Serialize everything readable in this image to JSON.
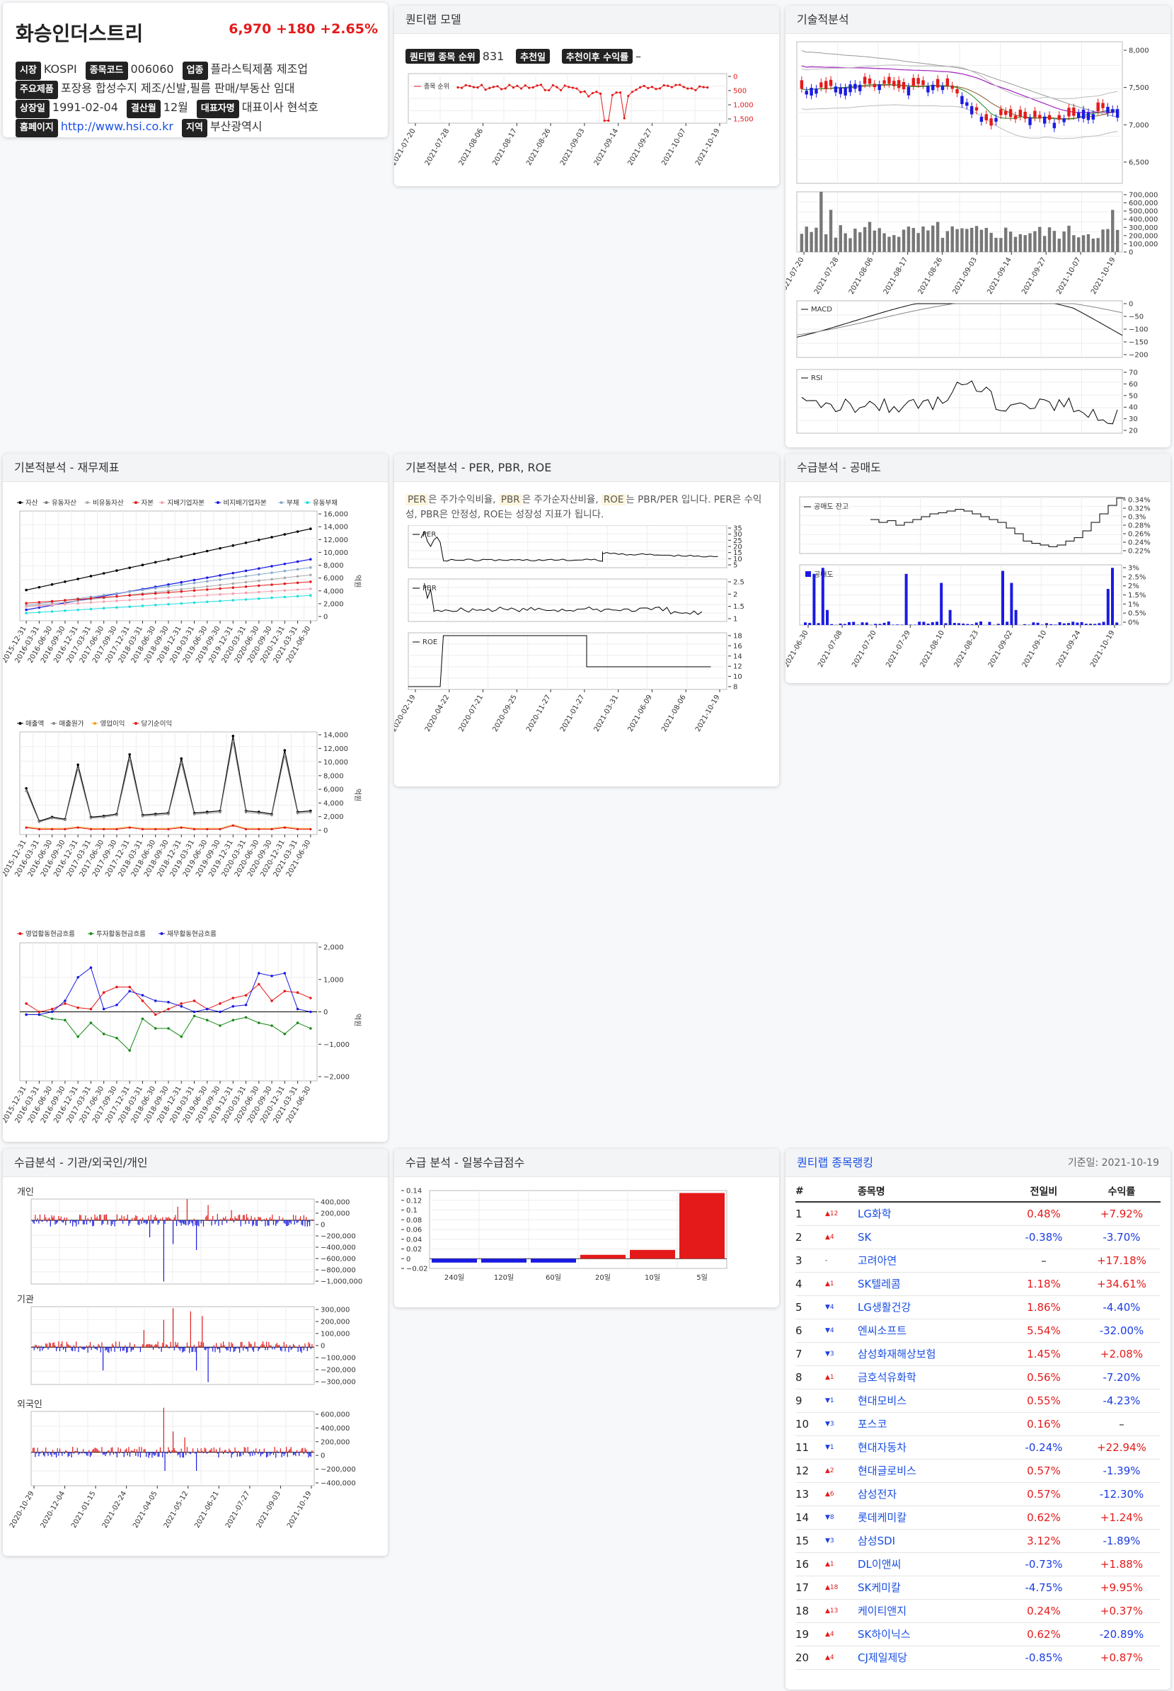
{
  "summary": {
    "name": "화승인더스트리",
    "price": "6,970",
    "change": "+180",
    "change_pct": "+2.65%",
    "fields": {
      "market_label": "시장",
      "market": "KOSPI",
      "code_label": "종목코드",
      "code": "006060",
      "sector_label": "업종",
      "sector": "플라스틱제품 제조업",
      "product_label": "주요제품",
      "product": "포장용 합성수지 제조/신발,필름 판매/부동산 임대",
      "listed_label": "상장일",
      "listed": "1991-02-04",
      "settle_label": "결산월",
      "settle": "12월",
      "ceo_label": "대표자명",
      "ceo": "대표이사 현석호",
      "home_label": "홈페이지",
      "home": "http://www.hsi.co.kr",
      "region_label": "지역",
      "region": "부산광역시"
    }
  },
  "panels": {
    "quantilab_model": "퀀티랩 모델",
    "technical": "기술적분석",
    "fundamental_fin": "기본적분석 - 재무제표",
    "fundamental_ratio": "기본적분석 - PER, PBR, ROE",
    "short_sell": "수급분석 - 공매도",
    "investors": "수급분석 - 기관/외국인/개인",
    "daily_score": "수급 분석 - 일봉수급점수",
    "ranking": "퀀티랩 종목랭킹"
  },
  "model": {
    "rank_label": "퀀티랩 종목 순위",
    "rank_value": "831",
    "rec_date_label": "추천일",
    "rec_return_label": "추천이후 수익률",
    "rec_return_value": "–",
    "legend": "종목 순위",
    "y_ticks": [
      "0",
      "500",
      "1,000",
      "1,500"
    ],
    "x_ticks": [
      "2021-07-20",
      "2021-07-28",
      "2021-08-06",
      "2021-08-17",
      "2021-08-26",
      "2021-09-03",
      "2021-09-14",
      "2021-09-27",
      "2021-10-07",
      "2021-10-19"
    ]
  },
  "tech": {
    "price_ticks": [
      "8,000",
      "7,500",
      "7,000",
      "6,500"
    ],
    "vol_ticks": [
      "700,000",
      "600,000",
      "500,000",
      "400,000",
      "300,000",
      "200,000",
      "100,000",
      "0"
    ],
    "x_ticks": [
      "2021-07-20",
      "2021-07-28",
      "2021-08-06",
      "2021-08-17",
      "2021-08-26",
      "2021-09-03",
      "2021-09-14",
      "2021-09-27",
      "2021-10-07",
      "2021-10-19"
    ],
    "macd_label": "MACD",
    "macd_ticks": [
      "0",
      "−50",
      "−100",
      "−150",
      "−200"
    ],
    "rsi_label": "RSI",
    "rsi_ticks": [
      "70",
      "60",
      "50",
      "40",
      "30",
      "20"
    ]
  },
  "fin": {
    "legend1": [
      "자산",
      "유동자산",
      "비유동자산",
      "자본",
      "지배기업자본",
      "비지배기업자본",
      "부채",
      "유동부채"
    ],
    "legend1_colors": [
      "#000000",
      "#777777",
      "#aaaaaa",
      "#e41a1a",
      "#f4a0b0",
      "#1a1ae4",
      "#88aacc",
      "#22dddd"
    ],
    "legend2": [
      "매출액",
      "매출원가",
      "영업이익",
      "당기순이익"
    ],
    "legend2_colors": [
      "#000000",
      "#888888",
      "#f0a020",
      "#e41a1a"
    ],
    "legend3": [
      "영업활동현금흐름",
      "투자활동현금흐름",
      "재무활동현금흐름"
    ],
    "legend3_colors": [
      "#e41a1a",
      "#1a8a1a",
      "#1a1ae4"
    ],
    "unit": "억원",
    "y1_ticks": [
      "16,000",
      "14,000",
      "12,000",
      "10,000",
      "8,000",
      "6,000",
      "4,000",
      "2,000",
      "0"
    ],
    "y2_ticks": [
      "14,000",
      "12,000",
      "10,000",
      "8,000",
      "6,000",
      "4,000",
      "2,000",
      "0"
    ],
    "y3_ticks": [
      "2,000",
      "1,000",
      "0",
      "−1,000",
      "−2,000"
    ],
    "x_ticks": [
      "2015-12-31",
      "2016-03-31",
      "2016-06-30",
      "2016-09-30",
      "2016-12-31",
      "2017-03-31",
      "2017-06-30",
      "2017-09-30",
      "2017-12-31",
      "2018-03-31",
      "2018-06-30",
      "2018-09-30",
      "2018-12-31",
      "2019-03-31",
      "2019-06-30",
      "2019-09-30",
      "2019-12-31",
      "2020-03-31",
      "2020-06-30",
      "2020-09-30",
      "2020-12-31",
      "2021-03-31",
      "2021-06-30"
    ]
  },
  "ratio": {
    "desc_pre": "은 주가수익비율, ",
    "desc_mid1": "은 주가순자산비율, ",
    "desc_mid2": "는 PBR/PER 입니다. PER은 수익성, PBR은 안정성, ROE는 성장성 지표가 됩니다.",
    "per": "PER",
    "pbr": "PBR",
    "roe": "ROE",
    "per_ticks": [
      "35",
      "30",
      "25",
      "20",
      "15",
      "10",
      "5"
    ],
    "pbr_ticks": [
      "2.5",
      "2",
      "1.5",
      "1"
    ],
    "roe_ticks": [
      "18",
      "16",
      "14",
      "12",
      "10",
      "8"
    ],
    "x_ticks": [
      "2020-02-19",
      "2020-04-22",
      "2020-07-21",
      "2020-09-25",
      "2020-11-27",
      "2021-01-27",
      "2021-03-31",
      "2021-06-09",
      "2021-08-06",
      "2021-10-19"
    ]
  },
  "short": {
    "balance_label": "공매도 잔고",
    "balance_ticks": [
      "0.34%",
      "0.32%",
      "0.3%",
      "0.28%",
      "0.26%",
      "0.24%",
      "0.22%"
    ],
    "vol_label": "공매도",
    "vol_ticks": [
      "3%",
      "2.5%",
      "2%",
      "1.5%",
      "1%",
      "0.5%",
      "0%"
    ],
    "x_ticks": [
      "2021-06-30",
      "2021-07-08",
      "2021-07-20",
      "2021-07-29",
      "2021-08-10",
      "2021-08-23",
      "2021-09-02",
      "2021-09-10",
      "2021-09-24",
      "2021-10-19"
    ]
  },
  "investors": {
    "retail": "개인",
    "inst": "기관",
    "foreign": "외국인",
    "retail_ticks": [
      "400,000",
      "200,000",
      "0",
      "−200,000",
      "−400,000",
      "−600,000",
      "−800,000",
      "−1,000,000"
    ],
    "inst_ticks": [
      "300,000",
      "200,000",
      "100,000",
      "0",
      "−100,000",
      "−200,000",
      "−300,000"
    ],
    "foreign_ticks": [
      "600,000",
      "400,000",
      "200,000",
      "0",
      "−200,000",
      "−400,000"
    ],
    "x_ticks": [
      "2020-10-29",
      "2020-12-04",
      "2021-01-15",
      "2021-02-24",
      "2021-04-05",
      "2021-05-12",
      "2021-06-21",
      "2021-07-27",
      "2021-09-03",
      "2021-10-19"
    ]
  },
  "score": {
    "y_ticks": [
      "0.14",
      "0.12",
      "0.1",
      "0.08",
      "0.06",
      "0.04",
      "0.02",
      "0",
      "−0.02"
    ]
  },
  "ranking": {
    "base_date": "기준일: 2021-10-19",
    "headers": [
      "#",
      "종목명",
      "전일비",
      "수익률"
    ],
    "rows": [
      {
        "n": "1",
        "mv": "▲12",
        "dir": "up",
        "name": "LG화학",
        "prev": "0.48%",
        "ret": "+7.92%"
      },
      {
        "n": "2",
        "mv": "▲4",
        "dir": "up",
        "name": "SK",
        "prev": "-0.38%",
        "ret": "-3.70%"
      },
      {
        "n": "3",
        "mv": "-",
        "dir": "flat",
        "name": "고려아연",
        "prev": "–",
        "ret": "+17.18%"
      },
      {
        "n": "4",
        "mv": "▲1",
        "dir": "up",
        "name": "SK텔레콤",
        "prev": "1.18%",
        "ret": "+34.61%"
      },
      {
        "n": "5",
        "mv": "▼4",
        "dir": "dn",
        "name": "LG생활건강",
        "prev": "1.86%",
        "ret": "-4.40%"
      },
      {
        "n": "6",
        "mv": "▼4",
        "dir": "dn",
        "name": "엔씨소프트",
        "prev": "5.54%",
        "ret": "-32.00%"
      },
      {
        "n": "7",
        "mv": "▼3",
        "dir": "dn",
        "name": "삼성화재해상보험",
        "prev": "1.45%",
        "ret": "+2.08%"
      },
      {
        "n": "8",
        "mv": "▲1",
        "dir": "up",
        "name": "금호석유화학",
        "prev": "0.56%",
        "ret": "-7.20%"
      },
      {
        "n": "9",
        "mv": "▼1",
        "dir": "dn",
        "name": "현대모비스",
        "prev": "0.55%",
        "ret": "-4.23%"
      },
      {
        "n": "10",
        "mv": "▼3",
        "dir": "dn",
        "name": "포스코",
        "prev": "0.16%",
        "ret": "–"
      },
      {
        "n": "11",
        "mv": "▼1",
        "dir": "dn",
        "name": "현대자동차",
        "prev": "-0.24%",
        "ret": "+22.94%"
      },
      {
        "n": "12",
        "mv": "▲2",
        "dir": "up",
        "name": "현대글로비스",
        "prev": "0.57%",
        "ret": "-1.39%"
      },
      {
        "n": "13",
        "mv": "▲6",
        "dir": "up",
        "name": "삼성전자",
        "prev": "0.57%",
        "ret": "-12.30%"
      },
      {
        "n": "14",
        "mv": "▼8",
        "dir": "dn",
        "name": "롯데케미칼",
        "prev": "0.62%",
        "ret": "+1.24%"
      },
      {
        "n": "15",
        "mv": "▼3",
        "dir": "dn",
        "name": "삼성SDI",
        "prev": "3.12%",
        "ret": "-1.89%"
      },
      {
        "n": "16",
        "mv": "▲1",
        "dir": "up",
        "name": "DL이앤씨",
        "prev": "-0.73%",
        "ret": "+1.88%"
      },
      {
        "n": "17",
        "mv": "▲18",
        "dir": "up",
        "name": "SK케미칼",
        "prev": "-4.75%",
        "ret": "+9.95%"
      },
      {
        "n": "18",
        "mv": "▲13",
        "dir": "up",
        "name": "케이티앤지",
        "prev": "0.24%",
        "ret": "+0.37%"
      },
      {
        "n": "19",
        "mv": "▲4",
        "dir": "up",
        "name": "SK하이닉스",
        "prev": "0.62%",
        "ret": "-20.89%"
      },
      {
        "n": "20",
        "mv": "▲4",
        "dir": "up",
        "name": "CJ제일제당",
        "prev": "-0.85%",
        "ret": "+0.87%"
      }
    ]
  },
  "chart_data": [
    {
      "type": "bar",
      "title": "",
      "categories": [
        "240일",
        "120일",
        "60일",
        "20일",
        "10일",
        "5일"
      ],
      "values": [
        -0.008,
        -0.008,
        -0.008,
        0.008,
        0.018,
        0.135
      ],
      "ylim": [
        -0.02,
        0.14
      ]
    }
  ],
  "colors": {
    "up": "#e41a1a",
    "down": "#1a1ae4",
    "link": "#1a4fe4"
  }
}
